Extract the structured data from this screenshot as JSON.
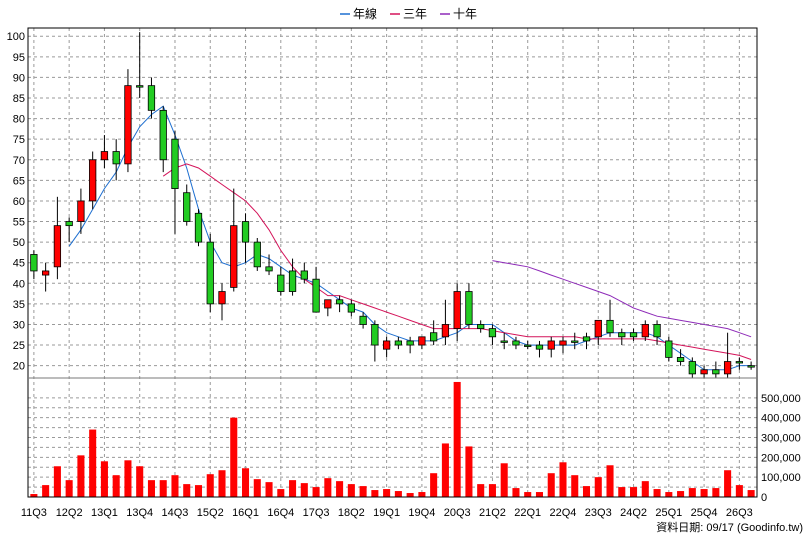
{
  "chart_data": {
    "type": "candlestick",
    "legend": [
      {
        "label": "年線",
        "color": "#1e6fd0"
      },
      {
        "label": "三年",
        "color": "#d4145a"
      },
      {
        "label": "十年",
        "color": "#8e2bb8"
      }
    ],
    "legend_position": "top-center",
    "grid": true,
    "price_axis": {
      "ticks": [
        20,
        25,
        30,
        35,
        40,
        45,
        50,
        55,
        60,
        65,
        70,
        75,
        80,
        85,
        90,
        95,
        100
      ],
      "ylim": [
        17,
        102
      ]
    },
    "volume_axis": {
      "ticks": [
        "0",
        "100,000",
        "200,000",
        "300,000",
        "400,000",
        "500,000"
      ],
      "values": [
        0,
        100000,
        200000,
        300000,
        400000,
        500000
      ],
      "ylim": [
        0,
        600000
      ]
    },
    "x_labels": [
      "11Q3",
      "12Q2",
      "13Q1",
      "13Q4",
      "14Q3",
      "15Q2",
      "16Q1",
      "16Q4",
      "17Q3",
      "18Q2",
      "19Q1",
      "19Q4",
      "20Q3",
      "21Q2",
      "22Q1",
      "22Q4",
      "23Q3",
      "24Q2",
      "25Q1",
      "25Q4",
      "26Q3"
    ],
    "candles": [
      {
        "o": 43,
        "h": 48,
        "l": 41,
        "c": 47,
        "up": false
      },
      {
        "o": 42,
        "h": 45,
        "l": 38,
        "c": 43,
        "up": true
      },
      {
        "o": 44,
        "h": 61,
        "l": 41,
        "c": 54,
        "up": true
      },
      {
        "o": 54,
        "h": 56,
        "l": 50,
        "c": 55,
        "up": false
      },
      {
        "o": 55,
        "h": 63,
        "l": 52,
        "c": 60,
        "up": true
      },
      {
        "o": 60,
        "h": 72,
        "l": 58,
        "c": 70,
        "up": true
      },
      {
        "o": 70,
        "h": 76,
        "l": 68,
        "c": 72,
        "up": true
      },
      {
        "o": 72,
        "h": 75,
        "l": 65,
        "c": 69,
        "up": false
      },
      {
        "o": 69,
        "h": 92,
        "l": 67,
        "c": 88,
        "up": true
      },
      {
        "o": 88,
        "h": 101,
        "l": 85,
        "c": 88,
        "up": false
      },
      {
        "o": 88,
        "h": 90,
        "l": 80,
        "c": 82,
        "up": false
      },
      {
        "o": 82,
        "h": 83,
        "l": 67,
        "c": 70,
        "up": false
      },
      {
        "o": 75,
        "h": 77,
        "l": 52,
        "c": 63,
        "up": false
      },
      {
        "o": 62,
        "h": 64,
        "l": 54,
        "c": 55,
        "up": false
      },
      {
        "o": 57,
        "h": 58,
        "l": 49,
        "c": 50,
        "up": false
      },
      {
        "o": 50,
        "h": 52,
        "l": 33,
        "c": 35,
        "up": false
      },
      {
        "o": 35,
        "h": 40,
        "l": 31,
        "c": 38,
        "up": true
      },
      {
        "o": 39,
        "h": 63,
        "l": 38,
        "c": 54,
        "up": true
      },
      {
        "o": 55,
        "h": 57,
        "l": 45,
        "c": 50,
        "up": false
      },
      {
        "o": 50,
        "h": 51,
        "l": 43,
        "c": 44,
        "up": false
      },
      {
        "o": 44,
        "h": 47,
        "l": 42,
        "c": 43,
        "up": false
      },
      {
        "o": 42,
        "h": 44,
        "l": 37,
        "c": 38,
        "up": false
      },
      {
        "o": 38,
        "h": 46,
        "l": 37,
        "c": 43,
        "up": false
      },
      {
        "o": 43,
        "h": 45,
        "l": 40,
        "c": 41,
        "up": false
      },
      {
        "o": 41,
        "h": 44,
        "l": 33,
        "c": 33,
        "up": false
      },
      {
        "o": 34,
        "h": 36,
        "l": 32,
        "c": 36,
        "up": true
      },
      {
        "o": 36,
        "h": 37,
        "l": 33,
        "c": 35,
        "up": false
      },
      {
        "o": 35,
        "h": 36,
        "l": 32,
        "c": 33,
        "up": false
      },
      {
        "o": 32,
        "h": 33,
        "l": 29,
        "c": 30,
        "up": false
      },
      {
        "o": 30,
        "h": 31,
        "l": 21,
        "c": 25,
        "up": false
      },
      {
        "o": 24,
        "h": 27,
        "l": 22,
        "c": 26,
        "up": true
      },
      {
        "o": 26,
        "h": 27,
        "l": 24,
        "c": 25,
        "up": false
      },
      {
        "o": 25,
        "h": 27,
        "l": 23,
        "c": 26,
        "up": false
      },
      {
        "o": 25,
        "h": 27,
        "l": 24,
        "c": 27,
        "up": true
      },
      {
        "o": 26,
        "h": 31,
        "l": 25,
        "c": 28,
        "up": false
      },
      {
        "o": 27,
        "h": 36,
        "l": 25,
        "c": 30,
        "up": true
      },
      {
        "o": 29,
        "h": 40,
        "l": 26,
        "c": 38,
        "up": true
      },
      {
        "o": 38,
        "h": 40,
        "l": 29,
        "c": 30,
        "up": false
      },
      {
        "o": 30,
        "h": 31,
        "l": 28,
        "c": 29,
        "up": false
      },
      {
        "o": 29,
        "h": 30,
        "l": 25,
        "c": 27,
        "up": false
      },
      {
        "o": 26,
        "h": 28,
        "l": 24,
        "c": 26,
        "up": false
      },
      {
        "o": 26,
        "h": 27,
        "l": 24,
        "c": 25,
        "up": false
      },
      {
        "o": 25,
        "h": 26,
        "l": 24,
        "c": 25,
        "up": false
      },
      {
        "o": 24,
        "h": 26,
        "l": 22,
        "c": 25,
        "up": false
      },
      {
        "o": 24,
        "h": 27,
        "l": 22,
        "c": 26,
        "up": true
      },
      {
        "o": 25,
        "h": 27,
        "l": 23,
        "c": 26,
        "up": true
      },
      {
        "o": 26,
        "h": 28,
        "l": 24,
        "c": 26,
        "up": false
      },
      {
        "o": 26,
        "h": 28,
        "l": 24,
        "c": 27,
        "up": false
      },
      {
        "o": 27,
        "h": 31,
        "l": 25,
        "c": 31,
        "up": true
      },
      {
        "o": 31,
        "h": 36,
        "l": 27,
        "c": 28,
        "up": false
      },
      {
        "o": 27,
        "h": 29,
        "l": 25,
        "c": 28,
        "up": false
      },
      {
        "o": 28,
        "h": 29,
        "l": 26,
        "c": 27,
        "up": false
      },
      {
        "o": 27,
        "h": 31,
        "l": 26,
        "c": 30,
        "up": true
      },
      {
        "o": 30,
        "h": 31,
        "l": 25,
        "c": 27,
        "up": false
      },
      {
        "o": 26,
        "h": 27,
        "l": 21,
        "c": 22,
        "up": false
      },
      {
        "o": 22,
        "h": 24,
        "l": 20,
        "c": 21,
        "up": false
      },
      {
        "o": 21,
        "h": 22,
        "l": 17,
        "c": 18,
        "up": false
      },
      {
        "o": 18,
        "h": 20,
        "l": 17,
        "c": 19,
        "up": true
      },
      {
        "o": 19,
        "h": 21,
        "l": 17,
        "c": 18,
        "up": false
      },
      {
        "o": 18,
        "h": 28,
        "l": 17,
        "c": 21,
        "up": true
      },
      {
        "o": 21,
        "h": 22,
        "l": 19,
        "c": 21,
        "up": false
      },
      {
        "o": 20,
        "h": 21,
        "l": 19,
        "c": 20,
        "up": false
      }
    ],
    "volumes": [
      15000,
      60000,
      155000,
      85000,
      210000,
      340000,
      180000,
      110000,
      185000,
      155000,
      85000,
      85000,
      110000,
      65000,
      60000,
      115000,
      135000,
      400000,
      145000,
      90000,
      75000,
      40000,
      85000,
      70000,
      50000,
      95000,
      80000,
      65000,
      55000,
      35000,
      40000,
      30000,
      20000,
      25000,
      120000,
      270000,
      580000,
      255000,
      65000,
      65000,
      170000,
      45000,
      25000,
      25000,
      120000,
      175000,
      110000,
      55000,
      100000,
      160000,
      50000,
      50000,
      80000,
      40000,
      25000,
      30000,
      45000,
      40000,
      45000,
      135000,
      60000,
      35000
    ],
    "ma_year": [
      null,
      null,
      null,
      null,
      null,
      null,
      null,
      null,
      null,
      null,
      null,
      null,
      null,
      null,
      null,
      null,
      null,
      null,
      null,
      null,
      null,
      null,
      null,
      null,
      null,
      null,
      null,
      null,
      null,
      null,
      null,
      null,
      null,
      null,
      null,
      null,
      null,
      null,
      null,
      null,
      null,
      null,
      null,
      null,
      null,
      null,
      null,
      null,
      null,
      null,
      null,
      null,
      null,
      null,
      null,
      null,
      null,
      null,
      null,
      null,
      null,
      null
    ],
    "ma_year_series": [
      {
        "i": 3,
        "v": 49
      },
      {
        "i": 4,
        "v": 53
      },
      {
        "i": 5,
        "v": 58
      },
      {
        "i": 6,
        "v": 63
      },
      {
        "i": 7,
        "v": 67
      },
      {
        "i": 8,
        "v": 73
      },
      {
        "i": 9,
        "v": 78
      },
      {
        "i": 10,
        "v": 81
      },
      {
        "i": 11,
        "v": 83
      },
      {
        "i": 12,
        "v": 76
      },
      {
        "i": 13,
        "v": 68
      },
      {
        "i": 14,
        "v": 58
      },
      {
        "i": 15,
        "v": 50
      },
      {
        "i": 16,
        "v": 45
      },
      {
        "i": 17,
        "v": 44
      },
      {
        "i": 18,
        "v": 45
      },
      {
        "i": 19,
        "v": 47
      },
      {
        "i": 20,
        "v": 46
      },
      {
        "i": 21,
        "v": 44
      },
      {
        "i": 22,
        "v": 42
      },
      {
        "i": 23,
        "v": 41
      },
      {
        "i": 24,
        "v": 40
      },
      {
        "i": 25,
        "v": 38
      },
      {
        "i": 26,
        "v": 36
      },
      {
        "i": 27,
        "v": 34
      },
      {
        "i": 28,
        "v": 33
      },
      {
        "i": 29,
        "v": 30
      },
      {
        "i": 30,
        "v": 28
      },
      {
        "i": 31,
        "v": 27
      },
      {
        "i": 32,
        "v": 26
      },
      {
        "i": 33,
        "v": 26
      },
      {
        "i": 34,
        "v": 26
      },
      {
        "i": 35,
        "v": 27
      },
      {
        "i": 36,
        "v": 28
      },
      {
        "i": 37,
        "v": 30
      },
      {
        "i": 38,
        "v": 30
      },
      {
        "i": 39,
        "v": 30
      },
      {
        "i": 40,
        "v": 28
      },
      {
        "i": 41,
        "v": 26
      },
      {
        "i": 42,
        "v": 25
      },
      {
        "i": 43,
        "v": 25
      },
      {
        "i": 44,
        "v": 25
      },
      {
        "i": 45,
        "v": 25
      },
      {
        "i": 46,
        "v": 25
      },
      {
        "i": 47,
        "v": 26
      },
      {
        "i": 48,
        "v": 27
      },
      {
        "i": 49,
        "v": 28
      },
      {
        "i": 50,
        "v": 28
      },
      {
        "i": 51,
        "v": 28
      },
      {
        "i": 52,
        "v": 28
      },
      {
        "i": 53,
        "v": 27
      },
      {
        "i": 54,
        "v": 25
      },
      {
        "i": 55,
        "v": 23
      },
      {
        "i": 56,
        "v": 21
      },
      {
        "i": 57,
        "v": 19
      },
      {
        "i": 58,
        "v": 19
      },
      {
        "i": 59,
        "v": 19
      },
      {
        "i": 60,
        "v": 20
      },
      {
        "i": 61,
        "v": 20
      }
    ],
    "ma_3year_series": [
      {
        "i": 11,
        "v": 66
      },
      {
        "i": 12,
        "v": 68
      },
      {
        "i": 13,
        "v": 69
      },
      {
        "i": 14,
        "v": 68
      },
      {
        "i": 15,
        "v": 66
      },
      {
        "i": 16,
        "v": 64
      },
      {
        "i": 17,
        "v": 62
      },
      {
        "i": 18,
        "v": 60
      },
      {
        "i": 19,
        "v": 57
      },
      {
        "i": 20,
        "v": 53
      },
      {
        "i": 21,
        "v": 48
      },
      {
        "i": 22,
        "v": 44
      },
      {
        "i": 23,
        "v": 41
      },
      {
        "i": 24,
        "v": 39
      },
      {
        "i": 25,
        "v": 37
      },
      {
        "i": 26,
        "v": 37
      },
      {
        "i": 27,
        "v": 36
      },
      {
        "i": 28,
        "v": 35
      },
      {
        "i": 29,
        "v": 34
      },
      {
        "i": 30,
        "v": 33
      },
      {
        "i": 31,
        "v": 32
      },
      {
        "i": 32,
        "v": 31
      },
      {
        "i": 33,
        "v": 30
      },
      {
        "i": 34,
        "v": 29
      },
      {
        "i": 35,
        "v": 29
      },
      {
        "i": 36,
        "v": 29
      },
      {
        "i": 37,
        "v": 29
      },
      {
        "i": 38,
        "v": 29
      },
      {
        "i": 39,
        "v": 28.5
      },
      {
        "i": 40,
        "v": 28
      },
      {
        "i": 41,
        "v": 27.5
      },
      {
        "i": 42,
        "v": 27
      },
      {
        "i": 43,
        "v": 27
      },
      {
        "i": 44,
        "v": 27
      },
      {
        "i": 45,
        "v": 27
      },
      {
        "i": 46,
        "v": 27
      },
      {
        "i": 47,
        "v": 26.5
      },
      {
        "i": 48,
        "v": 26.5
      },
      {
        "i": 49,
        "v": 26.5
      },
      {
        "i": 50,
        "v": 26.5
      },
      {
        "i": 51,
        "v": 26.5
      },
      {
        "i": 52,
        "v": 26.5
      },
      {
        "i": 53,
        "v": 26
      },
      {
        "i": 54,
        "v": 25.5
      },
      {
        "i": 55,
        "v": 25
      },
      {
        "i": 56,
        "v": 24.5
      },
      {
        "i": 57,
        "v": 24
      },
      {
        "i": 58,
        "v": 23.5
      },
      {
        "i": 59,
        "v": 23
      },
      {
        "i": 60,
        "v": 22.5
      },
      {
        "i": 61,
        "v": 21.5
      }
    ],
    "ma_10year_series": [
      {
        "i": 39,
        "v": 45.5
      },
      {
        "i": 40,
        "v": 45
      },
      {
        "i": 41,
        "v": 44.5
      },
      {
        "i": 42,
        "v": 44
      },
      {
        "i": 43,
        "v": 43
      },
      {
        "i": 44,
        "v": 42
      },
      {
        "i": 45,
        "v": 41
      },
      {
        "i": 46,
        "v": 40
      },
      {
        "i": 47,
        "v": 39
      },
      {
        "i": 48,
        "v": 38
      },
      {
        "i": 49,
        "v": 37
      },
      {
        "i": 50,
        "v": 35.5
      },
      {
        "i": 51,
        "v": 34
      },
      {
        "i": 52,
        "v": 33
      },
      {
        "i": 53,
        "v": 32
      },
      {
        "i": 54,
        "v": 31.5
      },
      {
        "i": 55,
        "v": 31
      },
      {
        "i": 56,
        "v": 30.5
      },
      {
        "i": 57,
        "v": 30
      },
      {
        "i": 58,
        "v": 29.5
      },
      {
        "i": 59,
        "v": 29
      },
      {
        "i": 60,
        "v": 28
      },
      {
        "i": 61,
        "v": 27
      }
    ]
  },
  "footer": {
    "label": "資料日期: 09/17  (Goodinfo.tw)"
  }
}
